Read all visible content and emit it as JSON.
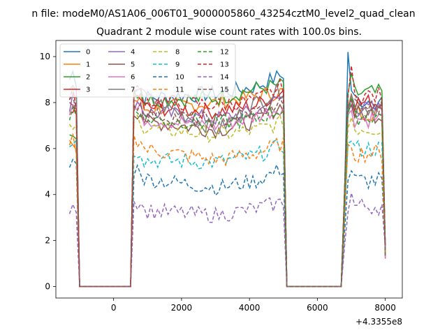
{
  "figure": {
    "suptitle": "n file: modeM0/AS1A06_006T01_9000005860_43254cztM0_level2_quad_clean",
    "title": "Quadrant 2 module wise count rates with 100.0s bins."
  },
  "chart_data": {
    "type": "line",
    "title": "Quadrant 2 module wise count rates with 100.0s bins.",
    "xlabel": "",
    "ylabel": "",
    "x_offset_label": "+4.3355e8",
    "xlim": [
      -1700,
      8500
    ],
    "ylim": [
      -0.5,
      10.7
    ],
    "xticks": [
      0,
      2000,
      4000,
      6000,
      8000
    ],
    "yticks": [
      0,
      2,
      4,
      6,
      8,
      10
    ],
    "grid": false,
    "legend": {
      "placement": "top-left",
      "columns": 4
    },
    "segments_x": [
      [
        -1300,
        -1200,
        -1100,
        -1000
      ],
      [
        -1000,
        -900,
        -800,
        -700,
        -600,
        -500,
        -400,
        -300,
        -200,
        -100,
        0,
        100,
        200,
        300,
        400,
        500
      ],
      [
        500,
        600,
        700,
        800,
        900,
        1000,
        1100,
        1200,
        1300,
        1400,
        1500,
        1600,
        1700,
        1800,
        1900,
        2000,
        2100,
        2200,
        2300,
        2400,
        2500,
        2600,
        2700,
        2800,
        2900,
        3000,
        3100,
        3200,
        3300,
        3400,
        3500,
        3600,
        3700,
        3800,
        3900,
        4000,
        4100,
        4200,
        4300,
        4400,
        4500,
        4600,
        4700,
        4800,
        4900,
        5000,
        5100
      ],
      [
        5100,
        5200,
        5300,
        5400,
        5500,
        5600,
        5700,
        5800,
        5900,
        6000,
        6100,
        6200,
        6300,
        6400,
        6500,
        6600,
        6700
      ],
      [
        6700,
        6800,
        6900,
        7000,
        7100,
        7200,
        7300,
        7400,
        7500,
        7600,
        7700,
        7800,
        7900,
        8000
      ]
    ],
    "series": [
      {
        "name": "0",
        "color": "#1f77b4",
        "dash": "",
        "levels": [
          9.0,
          8.2,
          8.4,
          8.7,
          9.3,
          8.1
        ]
      },
      {
        "name": "1",
        "color": "#ff7f0e",
        "dash": "",
        "levels": [
          6.0,
          7.7,
          8.0,
          8.3,
          8.5,
          7.6
        ]
      },
      {
        "name": "2",
        "color": "#2ca02c",
        "dash": "",
        "levels": [
          6.6,
          8.1,
          8.2,
          8.6,
          8.8,
          8.4
        ]
      },
      {
        "name": "3",
        "color": "#d62728",
        "dash": "",
        "levels": [
          7.6,
          7.8,
          7.6,
          7.9,
          8.6,
          8.0
        ]
      },
      {
        "name": "4",
        "color": "#9467bd",
        "dash": "",
        "levels": [
          7.9,
          7.6,
          7.3,
          7.6,
          8.3,
          7.7
        ]
      },
      {
        "name": "5",
        "color": "#8c564b",
        "dash": "",
        "levels": [
          7.7,
          7.2,
          6.8,
          7.2,
          8.0,
          7.5
        ]
      },
      {
        "name": "6",
        "color": "#e377c2",
        "dash": "",
        "levels": [
          7.8,
          7.3,
          7.0,
          7.4,
          7.9,
          7.3
        ]
      },
      {
        "name": "7",
        "color": "#7f7f7f",
        "dash": "",
        "levels": [
          8.2,
          8.3,
          6.8,
          8.0,
          8.7,
          7.8
        ]
      },
      {
        "name": "8",
        "color": "#bcbd22",
        "dash": "5,3",
        "levels": [
          6.7,
          6.9,
          6.6,
          6.8,
          7.2,
          6.9
        ]
      },
      {
        "name": "9",
        "color": "#17becf",
        "dash": "5,3",
        "levels": [
          6.2,
          5.5,
          5.4,
          5.7,
          6.2,
          6.0
        ]
      },
      {
        "name": "10",
        "color": "#1f77b4",
        "dash": "5,3",
        "levels": [
          5.2,
          4.7,
          4.3,
          4.6,
          5.2,
          4.6
        ]
      },
      {
        "name": "11",
        "color": "#ff7f0e",
        "dash": "5,3",
        "levels": [
          6.0,
          6.0,
          5.5,
          5.8,
          6.3,
          5.8
        ]
      },
      {
        "name": "12",
        "color": "#2ca02c",
        "dash": "5,3",
        "levels": [
          7.4,
          7.3,
          7.1,
          7.3,
          7.8,
          7.4
        ]
      },
      {
        "name": "13",
        "color": "#d62728",
        "dash": "5,3",
        "levels": [
          8.0,
          8.1,
          7.9,
          8.1,
          8.8,
          8.3
        ]
      },
      {
        "name": "14",
        "color": "#9467bd",
        "dash": "5,3",
        "levels": [
          3.5,
          3.3,
          3.1,
          3.4,
          3.7,
          3.5
        ]
      },
      {
        "name": "15",
        "color": "#8c564b",
        "dash": "5,3",
        "levels": [
          7.8,
          7.5,
          7.2,
          7.6,
          8.1,
          7.8
        ]
      }
    ],
    "peaks": {
      "0": [
        6900,
        10.2
      ],
      "13": [
        7000,
        9.6
      ]
    }
  }
}
